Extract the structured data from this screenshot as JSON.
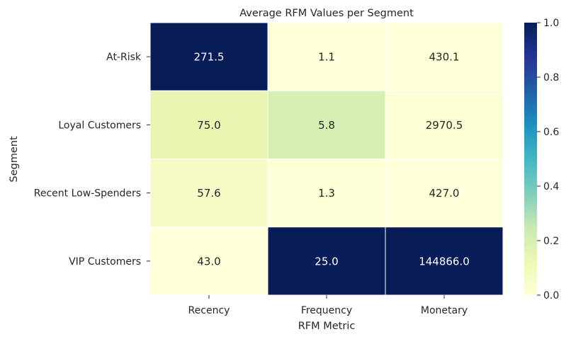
{
  "chart_data": {
    "type": "heatmap",
    "title": "Average RFM Values per Segment",
    "xlabel": "RFM Metric",
    "ylabel": "Segment",
    "columns": [
      "Recency",
      "Frequency",
      "Monetary"
    ],
    "rows": [
      "At-Risk",
      "Loyal Customers",
      "Recent Low-Spenders",
      "VIP Customers"
    ],
    "values": [
      [
        271.5,
        1.1,
        430.1
      ],
      [
        75.0,
        5.8,
        2970.5
      ],
      [
        57.6,
        1.3,
        427.0
      ],
      [
        43.0,
        25.0,
        144866.0
      ]
    ],
    "value_labels": [
      [
        "271.5",
        "1.1",
        "430.1"
      ],
      [
        "75.0",
        "5.8",
        "2970.5"
      ],
      [
        "57.6",
        "1.3",
        "427.0"
      ],
      [
        "43.0",
        "25.0",
        "144866.0"
      ]
    ],
    "color_normalization": "per-column min-max",
    "colormap": "YlGnBu",
    "colorbar": {
      "range": [
        0.0,
        1.0
      ],
      "ticks": [
        0.0,
        0.2,
        0.4,
        0.6,
        0.8,
        1.0
      ],
      "tick_labels": [
        "0.0",
        "0.2",
        "0.4",
        "0.6",
        "0.8",
        "1.0"
      ]
    },
    "colors": {
      "cell_border": "#ffffff",
      "dark_text": "#262626",
      "light_text": "#ffffff"
    }
  }
}
